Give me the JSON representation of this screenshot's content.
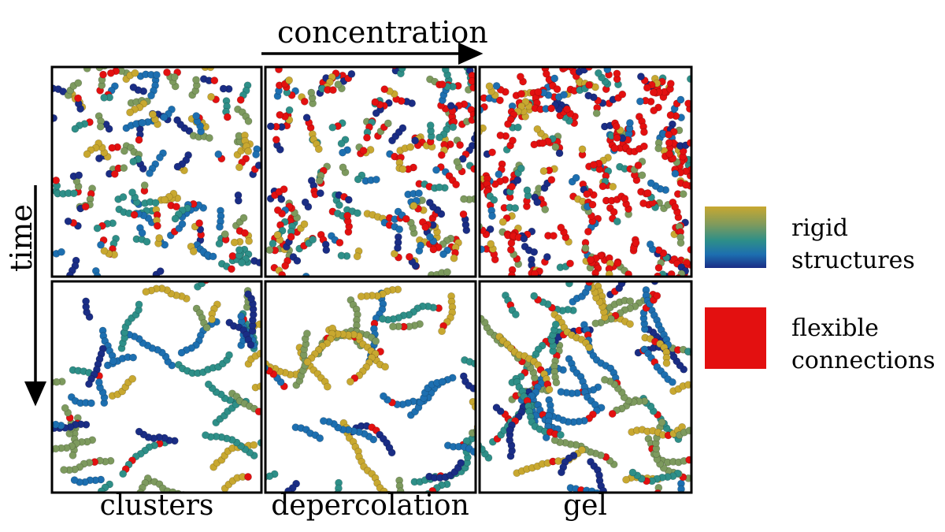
{
  "axes": {
    "horizontal_label": "concentration",
    "vertical_label": "time"
  },
  "columns": [
    "clusters",
    "depercolation",
    "gel"
  ],
  "legend": [
    {
      "line1": "rigid",
      "line2": "structures",
      "colors": [
        "#c8a830",
        "#7d9a5e",
        "#2e8f88",
        "#1d6fb0",
        "#1a2d85"
      ]
    },
    {
      "line1": "flexible",
      "line2": "connections",
      "colors": [
        "#e31010"
      ]
    }
  ],
  "panels": [
    {
      "row": 0,
      "col": 0,
      "red_fraction": 0.14,
      "density": 0.55,
      "chain_length": 3
    },
    {
      "row": 0,
      "col": 1,
      "red_fraction": 0.33,
      "density": 0.62,
      "chain_length": 3
    },
    {
      "row": 0,
      "col": 2,
      "red_fraction": 0.52,
      "density": 0.85,
      "chain_length": 3
    },
    {
      "row": 1,
      "col": 0,
      "red_fraction": 0.03,
      "density": 0.55,
      "chain_length": 8
    },
    {
      "row": 1,
      "col": 1,
      "red_fraction": 0.04,
      "density": 0.62,
      "chain_length": 12
    },
    {
      "row": 1,
      "col": 2,
      "red_fraction": 0.1,
      "density": 0.85,
      "chain_length": 10
    }
  ]
}
